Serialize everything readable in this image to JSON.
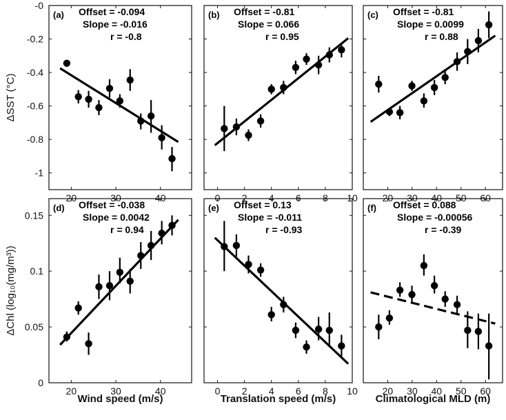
{
  "chart_data": [
    {
      "type": "scatter",
      "panel_label": "(a)",
      "stats": [
        "Offset = -0.094",
        "Slope = -0.016",
        "r = -0.8"
      ],
      "xlabel": "",
      "ylabel": "ΔSST (°C)",
      "xlim": [
        15,
        47
      ],
      "ylim": [
        -1.1,
        0
      ],
      "xticks": [
        20,
        30,
        40
      ],
      "yticks": [
        0,
        -0.2,
        -0.4,
        -0.6,
        -0.8,
        -1
      ],
      "yticklabels": [
        "-0",
        "-0.2",
        "-0.4",
        "-0.6",
        "-0.8",
        "-1"
      ],
      "points": [
        {
          "x": 19.0,
          "y": -0.345,
          "lo": -0.365,
          "hi": -0.335
        },
        {
          "x": 21.6,
          "y": -0.545,
          "lo": -0.585,
          "hi": -0.505
        },
        {
          "x": 23.9,
          "y": -0.56,
          "lo": -0.61,
          "hi": -0.51
        },
        {
          "x": 26.2,
          "y": -0.61,
          "lo": -0.655,
          "hi": -0.565
        },
        {
          "x": 28.6,
          "y": -0.495,
          "lo": -0.55,
          "hi": -0.44
        },
        {
          "x": 30.9,
          "y": -0.57,
          "lo": -0.61,
          "hi": -0.53
        },
        {
          "x": 33.2,
          "y": -0.445,
          "lo": -0.51,
          "hi": -0.38
        },
        {
          "x": 35.6,
          "y": -0.69,
          "lo": -0.74,
          "hi": -0.645
        },
        {
          "x": 37.9,
          "y": -0.66,
          "lo": -0.76,
          "hi": -0.565
        },
        {
          "x": 40.3,
          "y": -0.79,
          "lo": -0.86,
          "hi": -0.715
        },
        {
          "x": 42.6,
          "y": -0.915,
          "lo": -0.99,
          "hi": -0.845
        }
      ],
      "fit": {
        "x": [
          17.5,
          44.0
        ],
        "y": [
          -0.375,
          -0.815
        ],
        "style": "solid"
      }
    },
    {
      "type": "scatter",
      "panel_label": "(b)",
      "stats": [
        "Offset = -0.81",
        "Slope = 0.066",
        "r = 0.95"
      ],
      "xlabel": "",
      "ylabel": "",
      "xlim": [
        -1,
        10
      ],
      "ylim": [
        -1.1,
        0
      ],
      "xticks": [
        0,
        2,
        4,
        6,
        8,
        10
      ],
      "yticks": [],
      "points": [
        {
          "x": 0.5,
          "y": -0.735,
          "lo": -0.87,
          "hi": -0.6
        },
        {
          "x": 1.4,
          "y": -0.725,
          "lo": -0.775,
          "hi": -0.675
        },
        {
          "x": 2.3,
          "y": -0.775,
          "lo": -0.81,
          "hi": -0.74
        },
        {
          "x": 3.2,
          "y": -0.69,
          "lo": -0.73,
          "hi": -0.65
        },
        {
          "x": 4.0,
          "y": -0.5,
          "lo": -0.53,
          "hi": -0.47
        },
        {
          "x": 4.9,
          "y": -0.49,
          "lo": -0.53,
          "hi": -0.45
        },
        {
          "x": 5.8,
          "y": -0.37,
          "lo": -0.41,
          "hi": -0.33
        },
        {
          "x": 6.6,
          "y": -0.32,
          "lo": -0.355,
          "hi": -0.285
        },
        {
          "x": 7.5,
          "y": -0.355,
          "lo": -0.41,
          "hi": -0.3
        },
        {
          "x": 8.3,
          "y": -0.295,
          "lo": -0.34,
          "hi": -0.25
        },
        {
          "x": 9.2,
          "y": -0.265,
          "lo": -0.31,
          "hi": -0.225
        }
      ],
      "fit": {
        "x": [
          -0.2,
          9.7
        ],
        "y": [
          -0.835,
          -0.195
        ],
        "style": "solid"
      }
    },
    {
      "type": "scatter",
      "panel_label": "(c)",
      "stats": [
        "Offset = -0.81",
        "Slope = 0.0099",
        "r = 0.88"
      ],
      "xlabel": "",
      "ylabel": "",
      "xlim": [
        10,
        67
      ],
      "ylim": [
        -1.1,
        0
      ],
      "xticks": [
        20,
        30,
        40,
        50,
        60
      ],
      "yticks": [],
      "points": [
        {
          "x": 16.3,
          "y": -0.47,
          "lo": -0.52,
          "hi": -0.42
        },
        {
          "x": 20.7,
          "y": -0.635,
          "lo": -0.66,
          "hi": -0.61
        },
        {
          "x": 25.0,
          "y": -0.64,
          "lo": -0.68,
          "hi": -0.6
        },
        {
          "x": 29.9,
          "y": -0.48,
          "lo": -0.51,
          "hi": -0.45
        },
        {
          "x": 34.8,
          "y": -0.57,
          "lo": -0.61,
          "hi": -0.525
        },
        {
          "x": 39.1,
          "y": -0.49,
          "lo": -0.535,
          "hi": -0.445
        },
        {
          "x": 43.5,
          "y": -0.43,
          "lo": -0.47,
          "hi": -0.39
        },
        {
          "x": 48.4,
          "y": -0.335,
          "lo": -0.39,
          "hi": -0.28
        },
        {
          "x": 52.7,
          "y": -0.275,
          "lo": -0.35,
          "hi": -0.2
        },
        {
          "x": 57.1,
          "y": -0.21,
          "lo": -0.28,
          "hi": -0.14
        },
        {
          "x": 61.4,
          "y": -0.115,
          "lo": -0.195,
          "hi": -0.035
        }
      ],
      "fit": {
        "x": [
          13.0,
          64.0
        ],
        "y": [
          -0.695,
          -0.18
        ],
        "style": "solid"
      }
    },
    {
      "type": "scatter",
      "panel_label": "(d)",
      "stats": [
        "Offset = -0.038",
        "Slope = 0.0042",
        "r = 0.94"
      ],
      "xlabel": "Wind speed (m/s)",
      "ylabel": "ΔChl (log₁₀(mg/m³))",
      "xlim": [
        15,
        47
      ],
      "ylim": [
        0,
        0.165
      ],
      "xticks": [
        20,
        30,
        40
      ],
      "yticks": [
        0,
        0.05,
        0.1,
        0.15
      ],
      "yticklabels": [
        "0",
        "0.05",
        "0.1",
        "0.15"
      ],
      "points": [
        {
          "x": 19.0,
          "y": 0.041,
          "lo": 0.037,
          "hi": 0.046
        },
        {
          "x": 21.6,
          "y": 0.067,
          "lo": 0.061,
          "hi": 0.073
        },
        {
          "x": 23.9,
          "y": 0.035,
          "lo": 0.025,
          "hi": 0.045
        },
        {
          "x": 26.2,
          "y": 0.086,
          "lo": 0.075,
          "hi": 0.097
        },
        {
          "x": 28.6,
          "y": 0.087,
          "lo": 0.074,
          "hi": 0.1
        },
        {
          "x": 30.9,
          "y": 0.099,
          "lo": 0.089,
          "hi": 0.112
        },
        {
          "x": 33.2,
          "y": 0.091,
          "lo": 0.08,
          "hi": 0.102
        },
        {
          "x": 35.6,
          "y": 0.114,
          "lo": 0.102,
          "hi": 0.126
        },
        {
          "x": 37.9,
          "y": 0.123,
          "lo": 0.11,
          "hi": 0.136
        },
        {
          "x": 40.3,
          "y": 0.134,
          "lo": 0.124,
          "hi": 0.145
        },
        {
          "x": 42.6,
          "y": 0.141,
          "lo": 0.132,
          "hi": 0.15
        }
      ],
      "fit": {
        "x": [
          17.5,
          44.0
        ],
        "y": [
          0.034,
          0.146
        ],
        "style": "solid"
      }
    },
    {
      "type": "scatter",
      "panel_label": "(e)",
      "stats": [
        "Offset = 0.13",
        "Slope = -0.011",
        "r = -0.93"
      ],
      "xlabel": "Translation speed (m/s)",
      "ylabel": "",
      "xlim": [
        -1,
        10
      ],
      "ylim": [
        0,
        0.165
      ],
      "xticks": [
        0,
        2,
        4,
        6,
        8,
        10
      ],
      "yticks": [],
      "points": [
        {
          "x": 0.5,
          "y": 0.122,
          "lo": 0.1,
          "hi": 0.145
        },
        {
          "x": 1.4,
          "y": 0.123,
          "lo": 0.113,
          "hi": 0.133
        },
        {
          "x": 2.3,
          "y": 0.106,
          "lo": 0.098,
          "hi": 0.114
        },
        {
          "x": 3.2,
          "y": 0.101,
          "lo": 0.095,
          "hi": 0.107
        },
        {
          "x": 4.0,
          "y": 0.061,
          "lo": 0.055,
          "hi": 0.068
        },
        {
          "x": 4.9,
          "y": 0.07,
          "lo": 0.063,
          "hi": 0.077
        },
        {
          "x": 5.8,
          "y": 0.047,
          "lo": 0.04,
          "hi": 0.054
        },
        {
          "x": 6.6,
          "y": 0.032,
          "lo": 0.026,
          "hi": 0.038
        },
        {
          "x": 7.5,
          "y": 0.048,
          "lo": 0.038,
          "hi": 0.059
        },
        {
          "x": 8.3,
          "y": 0.047,
          "lo": 0.032,
          "hi": 0.063
        },
        {
          "x": 9.2,
          "y": 0.033,
          "lo": 0.023,
          "hi": 0.043
        }
      ],
      "fit": {
        "x": [
          -0.2,
          9.7
        ],
        "y": [
          0.13,
          0.017
        ],
        "style": "solid"
      }
    },
    {
      "type": "scatter",
      "panel_label": "(f)",
      "stats": [
        "Offset = 0.088",
        "Slope = -0.00056",
        "r = -0.39"
      ],
      "xlabel": "Climatological MLD (m)",
      "ylabel": "",
      "xlim": [
        10,
        67
      ],
      "ylim": [
        0,
        0.165
      ],
      "xticks": [
        20,
        30,
        40,
        50,
        60
      ],
      "yticks": [],
      "points": [
        {
          "x": 16.3,
          "y": 0.05,
          "lo": 0.039,
          "hi": 0.061
        },
        {
          "x": 20.7,
          "y": 0.058,
          "lo": 0.052,
          "hi": 0.065
        },
        {
          "x": 25.0,
          "y": 0.083,
          "lo": 0.077,
          "hi": 0.09
        },
        {
          "x": 29.9,
          "y": 0.079,
          "lo": 0.072,
          "hi": 0.087
        },
        {
          "x": 34.8,
          "y": 0.105,
          "lo": 0.096,
          "hi": 0.115
        },
        {
          "x": 39.1,
          "y": 0.087,
          "lo": 0.08,
          "hi": 0.096
        },
        {
          "x": 43.5,
          "y": 0.075,
          "lo": 0.068,
          "hi": 0.082
        },
        {
          "x": 48.4,
          "y": 0.07,
          "lo": 0.062,
          "hi": 0.078
        },
        {
          "x": 52.7,
          "y": 0.047,
          "lo": 0.031,
          "hi": 0.064
        },
        {
          "x": 57.1,
          "y": 0.046,
          "lo": 0.03,
          "hi": 0.062
        },
        {
          "x": 61.4,
          "y": 0.033,
          "lo": 0.003,
          "hi": 0.062
        }
      ],
      "fit": {
        "x": [
          13.0,
          64.0
        ],
        "y": [
          0.081,
          0.053
        ],
        "style": "dashed"
      }
    }
  ]
}
